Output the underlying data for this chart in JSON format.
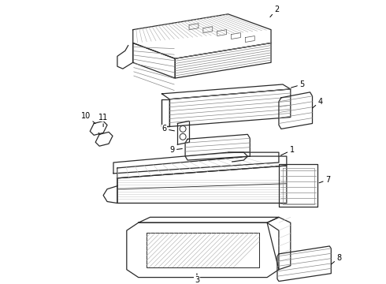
{
  "background_color": "#ffffff",
  "line_color": "#2a2a2a",
  "label_color": "#000000",
  "fig_width": 4.9,
  "fig_height": 3.6,
  "dpi": 100,
  "hatch_color": "#555555",
  "light_line": "#777777"
}
